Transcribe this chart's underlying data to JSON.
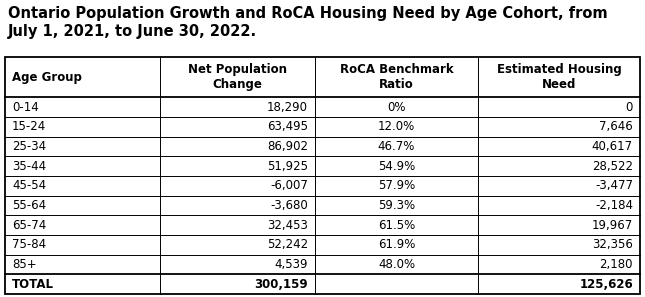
{
  "title_line1": "Ontario Population Growth and RoCA Housing Need by Age Cohort, from",
  "title_line2": "July 1, 2021, to June 30, 2022.",
  "col_headers": [
    "Age Group",
    "Net Population\nChange",
    "RoCA Benchmark\nRatio",
    "Estimated Housing\nNeed"
  ],
  "rows": [
    [
      "0-14",
      "18,290",
      "0%",
      "0"
    ],
    [
      "15-24",
      "63,495",
      "12.0%",
      "7,646"
    ],
    [
      "25-34",
      "86,902",
      "46.7%",
      "40,617"
    ],
    [
      "35-44",
      "51,925",
      "54.9%",
      "28,522"
    ],
    [
      "45-54",
      "-6,007",
      "57.9%",
      "-3,477"
    ],
    [
      "55-64",
      "-3,680",
      "59.3%",
      "-2,184"
    ],
    [
      "65-74",
      "32,453",
      "61.5%",
      "19,967"
    ],
    [
      "75-84",
      "52,242",
      "61.9%",
      "32,356"
    ],
    [
      "85+",
      "4,539",
      "48.0%",
      "2,180"
    ]
  ],
  "total_row": [
    "TOTAL",
    "300,159",
    "",
    "125,626"
  ],
  "col_aligns": [
    "left",
    "right",
    "center",
    "right"
  ],
  "bg_color": "#ffffff",
  "border_color": "#000000",
  "title_fontsize": 10.5,
  "header_fontsize": 8.5,
  "cell_fontsize": 8.5
}
